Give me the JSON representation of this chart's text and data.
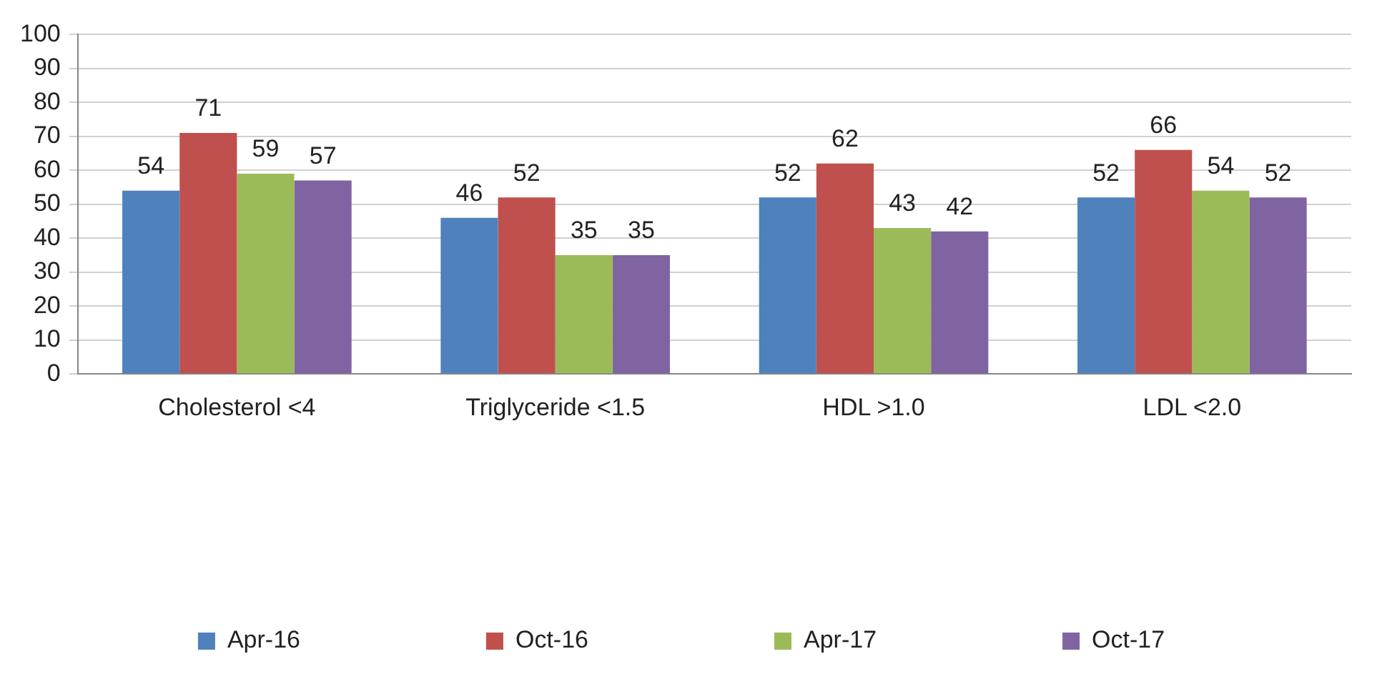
{
  "chart_data": {
    "type": "bar",
    "categories": [
      "Cholesterol <4",
      "Triglyceride <1.5",
      "HDL >1.0",
      "LDL <2.0"
    ],
    "series": [
      {
        "name": "Apr-16",
        "color": "#4f81bd",
        "values": [
          54,
          46,
          52,
          52
        ]
      },
      {
        "name": "Oct-16",
        "color": "#c0504d",
        "values": [
          71,
          52,
          62,
          66
        ]
      },
      {
        "name": "Apr-17",
        "color": "#9bbb59",
        "values": [
          59,
          35,
          43,
          54
        ]
      },
      {
        "name": "Oct-17",
        "color": "#8064a2",
        "values": [
          57,
          35,
          42,
          52
        ]
      }
    ],
    "ylim": [
      0,
      100
    ],
    "yticks": [
      0,
      10,
      20,
      30,
      40,
      50,
      60,
      70,
      80,
      90,
      100
    ],
    "grid": "y",
    "legend": "bottom",
    "data_labels": true
  }
}
